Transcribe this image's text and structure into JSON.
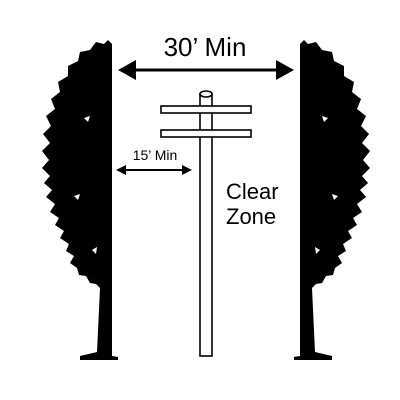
{
  "labels": {
    "total_width": "30’ Min",
    "half_width": "15’ Min",
    "zone_line1": "Clear",
    "zone_line2": "Zone"
  },
  "icons": {
    "left_tree": "tree-silhouette-icon",
    "right_tree": "tree-silhouette-icon",
    "pole": "utility-pole-icon"
  },
  "colors": {
    "ink": "#000000",
    "background": "#ffffff"
  }
}
